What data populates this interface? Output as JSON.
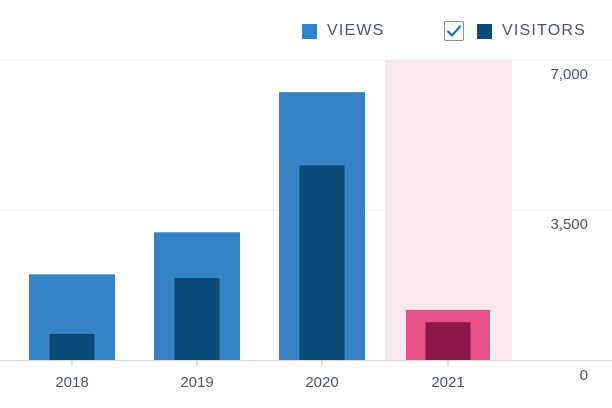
{
  "legend": {
    "views_label": "VIEWS",
    "visitors_label": "VISITORS",
    "visitors_checked": true
  },
  "colors": {
    "views": "#3582c4",
    "visitors": "#0a4b78",
    "highlight_views": "#e65087",
    "highlight_visitors": "#8c1749",
    "highlight_band": "#f9e8ee",
    "gridline": "#f0f0f1",
    "checkmark": "#2271b1"
  },
  "chart_data": {
    "type": "bar",
    "categories": [
      "2018",
      "2019",
      "2020",
      "2021"
    ],
    "series": [
      {
        "name": "VIEWS",
        "values": [
          2000,
          2980,
          6250,
          1170
        ]
      },
      {
        "name": "VISITORS",
        "values": [
          610,
          1910,
          4540,
          880
        ]
      }
    ],
    "ylim": [
      0,
      7000
    ],
    "y_ticks": [
      "0",
      "3,500",
      "7,000"
    ],
    "y_tick_values": [
      0,
      3500,
      7000
    ],
    "highlighted_category": "2021",
    "grid": true
  }
}
